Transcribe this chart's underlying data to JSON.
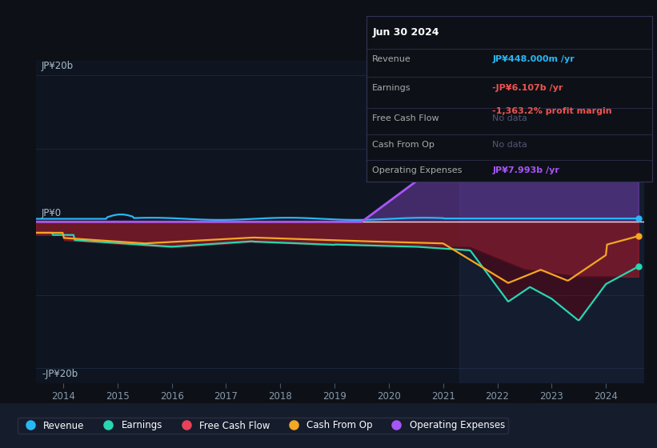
{
  "bg_color": "#0d1117",
  "plot_bg": "#131929",
  "highlight_bg": "#1a2035",
  "ylabel_pos": "JP¥20b",
  "ylabel_neg": "-JP¥20b",
  "ylabel_zero": "JP¥0",
  "revenue_color": "#29b6f6",
  "earnings_color": "#26d7b0",
  "free_cash_flow_color": "#e8415a",
  "cash_from_op_color": "#f5a623",
  "operating_expenses_color": "#a855f7",
  "info_box": {
    "title": "Jun 30 2024",
    "revenue_label": "Revenue",
    "revenue_value": "JP¥448.000m /yr",
    "revenue_color": "#29b6f6",
    "earnings_label": "Earnings",
    "earnings_value": "-JP¥6.107b /yr",
    "earnings_color": "#ef5350",
    "earnings_margin": "-1,363.2% profit margin",
    "earnings_margin_color": "#ef5350",
    "free_cash_label": "Free Cash Flow",
    "free_cash_value": "No data",
    "nodata_color": "#555577",
    "cash_op_label": "Cash From Op",
    "cash_op_value": "No data",
    "op_exp_label": "Operating Expenses",
    "op_exp_value": "JP¥7.993b /yr",
    "op_exp_color": "#a855f7"
  },
  "legend": [
    "Revenue",
    "Earnings",
    "Free Cash Flow",
    "Cash From Op",
    "Operating Expenses"
  ]
}
